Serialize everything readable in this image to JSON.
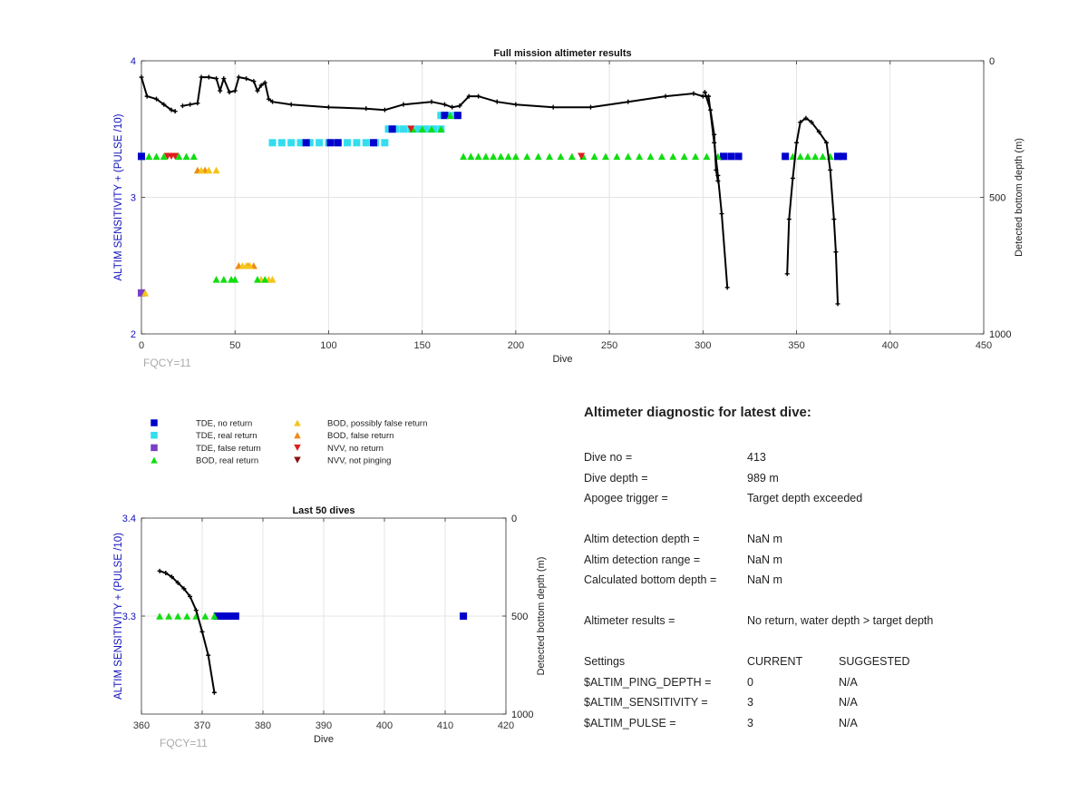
{
  "chart_data": [
    {
      "type": "scatter",
      "title": "Full mission altimeter results",
      "xlabel": "Dive",
      "ylabel": "ALTIM SENSITIVITY + (PULSE /10)",
      "y2label": "Detected bottom depth (m)",
      "xlim": [
        0,
        450
      ],
      "ylim": [
        2,
        4
      ],
      "y2lim": [
        0,
        1000
      ],
      "y2_reversed": true,
      "xticks": [
        0,
        50,
        100,
        150,
        200,
        250,
        300,
        350,
        400,
        450
      ],
      "yticks": [
        2,
        3,
        4
      ],
      "y2ticks": [
        0,
        500,
        1000
      ],
      "grid": true,
      "note": "FQCY=11",
      "markers": {
        "tde_real": [
          [
            0,
            3.3
          ],
          [
            70,
            3.4
          ],
          [
            75,
            3.4
          ],
          [
            80,
            3.4
          ],
          [
            85,
            3.4
          ],
          [
            90,
            3.4
          ],
          [
            95,
            3.4
          ],
          [
            100,
            3.4
          ],
          [
            105,
            3.4
          ],
          [
            110,
            3.4
          ],
          [
            115,
            3.4
          ],
          [
            120,
            3.4
          ],
          [
            125,
            3.4
          ],
          [
            130,
            3.4
          ],
          [
            132,
            3.5
          ],
          [
            136,
            3.5
          ],
          [
            140,
            3.5
          ],
          [
            144,
            3.5
          ],
          [
            148,
            3.5
          ],
          [
            152,
            3.5
          ],
          [
            156,
            3.5
          ],
          [
            160,
            3.5
          ],
          [
            160,
            3.6
          ],
          [
            164,
            3.6
          ],
          [
            168,
            3.6
          ]
        ],
        "tde_no": [
          [
            0,
            3.3
          ],
          [
            88,
            3.4
          ],
          [
            101,
            3.4
          ],
          [
            105,
            3.4
          ],
          [
            124,
            3.4
          ],
          [
            134,
            3.5
          ],
          [
            162,
            3.6
          ],
          [
            169,
            3.6
          ],
          [
            311,
            3.3
          ],
          [
            315,
            3.3
          ],
          [
            319,
            3.3
          ],
          [
            344,
            3.3
          ],
          [
            372,
            3.3
          ],
          [
            375,
            3.3
          ]
        ],
        "tde_false": [
          [
            0,
            2.3
          ]
        ],
        "bod_real": [
          [
            4,
            3.3
          ],
          [
            8,
            3.3
          ],
          [
            12,
            3.3
          ],
          [
            20,
            3.3
          ],
          [
            24,
            3.3
          ],
          [
            28,
            3.3
          ],
          [
            40,
            2.4
          ],
          [
            44,
            2.4
          ],
          [
            48,
            2.4
          ],
          [
            50,
            2.4
          ],
          [
            62,
            2.4
          ],
          [
            66,
            2.4
          ],
          [
            145,
            3.5
          ],
          [
            150,
            3.5
          ],
          [
            155,
            3.5
          ],
          [
            160,
            3.5
          ],
          [
            165,
            3.6
          ],
          [
            172,
            3.3
          ],
          [
            176,
            3.3
          ],
          [
            180,
            3.3
          ],
          [
            184,
            3.3
          ],
          [
            188,
            3.3
          ],
          [
            192,
            3.3
          ],
          [
            196,
            3.3
          ],
          [
            200,
            3.3
          ],
          [
            206,
            3.3
          ],
          [
            212,
            3.3
          ],
          [
            218,
            3.3
          ],
          [
            224,
            3.3
          ],
          [
            230,
            3.3
          ],
          [
            236,
            3.3
          ],
          [
            242,
            3.3
          ],
          [
            248,
            3.3
          ],
          [
            254,
            3.3
          ],
          [
            260,
            3.3
          ],
          [
            266,
            3.3
          ],
          [
            272,
            3.3
          ],
          [
            278,
            3.3
          ],
          [
            284,
            3.3
          ],
          [
            290,
            3.3
          ],
          [
            296,
            3.3
          ],
          [
            302,
            3.3
          ],
          [
            308,
            3.3
          ],
          [
            348,
            3.3
          ],
          [
            352,
            3.3
          ],
          [
            356,
            3.3
          ],
          [
            360,
            3.3
          ],
          [
            364,
            3.3
          ],
          [
            368,
            3.3
          ]
        ],
        "bod_possibly_false": [
          [
            2,
            2.3
          ],
          [
            32,
            3.2
          ],
          [
            36,
            3.2
          ],
          [
            40,
            3.2
          ],
          [
            54,
            2.5
          ],
          [
            56,
            2.5
          ],
          [
            58,
            2.5
          ],
          [
            64,
            2.4
          ],
          [
            68,
            2.4
          ],
          [
            70,
            2.4
          ]
        ],
        "bod_false": [
          [
            30,
            3.2
          ],
          [
            34,
            3.2
          ],
          [
            52,
            2.5
          ],
          [
            57,
            2.5
          ],
          [
            60,
            2.5
          ]
        ],
        "nvv_no": [
          [
            14,
            3.3
          ],
          [
            16,
            3.3
          ],
          [
            18,
            3.3
          ],
          [
            144,
            3.5
          ],
          [
            235,
            3.3
          ]
        ],
        "nvv_not_pinging": []
      },
      "depth_series": {
        "name": "Detected bottom depth",
        "segments": [
          [
            [
              0,
              60
            ],
            [
              3,
              130
            ],
            [
              8,
              140
            ],
            [
              12,
              160
            ],
            [
              16,
              180
            ],
            [
              18,
              185
            ]
          ],
          [
            [
              22,
              165
            ],
            [
              26,
              160
            ],
            [
              30,
              155
            ],
            [
              32,
              60
            ],
            [
              36,
              60
            ],
            [
              40,
              65
            ],
            [
              42,
              110
            ],
            [
              44,
              65
            ],
            [
              47,
              115
            ],
            [
              50,
              110
            ],
            [
              52,
              60
            ],
            [
              56,
              65
            ],
            [
              60,
              75
            ],
            [
              62,
              110
            ],
            [
              64,
              90
            ],
            [
              66,
              80
            ],
            [
              68,
              140
            ],
            [
              70,
              150
            ],
            [
              80,
              160
            ],
            [
              100,
              170
            ],
            [
              120,
              175
            ],
            [
              130,
              180
            ],
            [
              140,
              160
            ],
            [
              155,
              150
            ],
            [
              162,
              160
            ],
            [
              166,
              170
            ],
            [
              170,
              165
            ],
            [
              175,
              130
            ],
            [
              180,
              130
            ],
            [
              190,
              150
            ],
            [
              200,
              160
            ],
            [
              220,
              170
            ],
            [
              240,
              170
            ],
            [
              260,
              150
            ],
            [
              280,
              130
            ],
            [
              295,
              120
            ],
            [
              300,
              130
            ],
            [
              303,
              130
            ],
            [
              306,
              300
            ],
            [
              308,
              420
            ],
            [
              310,
              560
            ],
            [
              313,
              830
            ]
          ],
          [
            [
              301,
              115
            ],
            [
              304,
              180
            ],
            [
              306,
              270
            ],
            [
              307,
              400
            ],
            [
              308,
              440
            ]
          ],
          [
            [
              345,
              780
            ],
            [
              346,
              580
            ],
            [
              348,
              430
            ],
            [
              350,
              300
            ],
            [
              352,
              225
            ],
            [
              355,
              210
            ],
            [
              358,
              225
            ],
            [
              362,
              260
            ],
            [
              366,
              300
            ],
            [
              368,
              400
            ],
            [
              370,
              580
            ],
            [
              371,
              700
            ],
            [
              372,
              890
            ]
          ]
        ]
      }
    },
    {
      "type": "scatter",
      "title": "Last 50 dives",
      "xlabel": "Dive",
      "ylabel": "ALTIM SENSITIVITY + (PULSE /10)",
      "y2label": "Detected bottom depth (m)",
      "xlim": [
        360,
        420
      ],
      "ylim": [
        3.2,
        3.4
      ],
      "y2lim": [
        0,
        1000
      ],
      "y2_reversed": true,
      "xticks": [
        360,
        370,
        380,
        390,
        400,
        410,
        420
      ],
      "yticks": [
        3.4,
        3.3
      ],
      "y2ticks": [
        0,
        500,
        1000
      ],
      "grid": true,
      "note": "FQCY=11",
      "markers": {
        "bod_real": [
          [
            363,
            3.3
          ],
          [
            364.5,
            3.3
          ],
          [
            366,
            3.3
          ],
          [
            367.5,
            3.3
          ],
          [
            369,
            3.3
          ],
          [
            370.5,
            3.3
          ],
          [
            372,
            3.3
          ]
        ],
        "tde_no": [
          [
            372.5,
            3.3
          ],
          [
            373.5,
            3.3
          ],
          [
            374.5,
            3.3
          ],
          [
            375.5,
            3.3
          ],
          [
            413,
            3.3
          ]
        ]
      },
      "depth_series": {
        "name": "Detected bottom depth",
        "segments": [
          [
            [
              363,
              270
            ],
            [
              364,
              280
            ],
            [
              365,
              300
            ],
            [
              366,
              330
            ],
            [
              367,
              360
            ],
            [
              368,
              400
            ],
            [
              369,
              470
            ],
            [
              370,
              580
            ],
            [
              371,
              700
            ],
            [
              372,
              890
            ]
          ]
        ]
      }
    }
  ],
  "legend": {
    "items": [
      {
        "label": "TDE, no return",
        "marker": "square",
        "color": "#0000cc"
      },
      {
        "label": "TDE, real return",
        "marker": "square",
        "color": "#33ddee"
      },
      {
        "label": "TDE, false return",
        "marker": "square",
        "color": "#7a3ec8"
      },
      {
        "label": "BOD, real return",
        "marker": "triangle-up",
        "color": "#11dd11"
      },
      {
        "label": "BOD, possibly false return",
        "marker": "triangle-up",
        "color": "#f5c518"
      },
      {
        "label": "BOD, false return",
        "marker": "triangle-up",
        "color": "#f08a14"
      },
      {
        "label": "NVV, no return",
        "marker": "triangle-down",
        "color": "#e01c1c"
      },
      {
        "label": "NVV, not pinging",
        "marker": "triangle-down",
        "color": "#8b1010"
      }
    ]
  },
  "colors": {
    "axis_blue": "#1111bb",
    "depth_line": "#000000",
    "grid": "#e4e4e4",
    "note_gray": "#aaaaaa"
  },
  "diagnostic": {
    "title": "Altimeter diagnostic for latest dive:",
    "rows": [
      {
        "label": "Dive no =",
        "value": "413"
      },
      {
        "label": "Dive depth =",
        "value": "989 m"
      },
      {
        "label": "Apogee trigger =",
        "value": "Target depth exceeded"
      },
      {
        "label": "Altim detection depth =",
        "value": "NaN m"
      },
      {
        "label": "Altim detection range =",
        "value": "NaN m"
      },
      {
        "label": "Calculated bottom depth =",
        "value": "NaN m"
      },
      {
        "label": "Altimeter results =",
        "value": "No return, water depth > target depth"
      }
    ],
    "settings": {
      "header": [
        "Settings",
        "CURRENT",
        "SUGGESTED"
      ],
      "rows": [
        {
          "name": "$ALTIM_PING_DEPTH =",
          "current": "0",
          "suggested": "N/A"
        },
        {
          "name": "$ALTIM_SENSITIVITY =",
          "current": "3",
          "suggested": "N/A"
        },
        {
          "name": "$ALTIM_PULSE =",
          "current": "3",
          "suggested": "N/A"
        }
      ]
    }
  }
}
